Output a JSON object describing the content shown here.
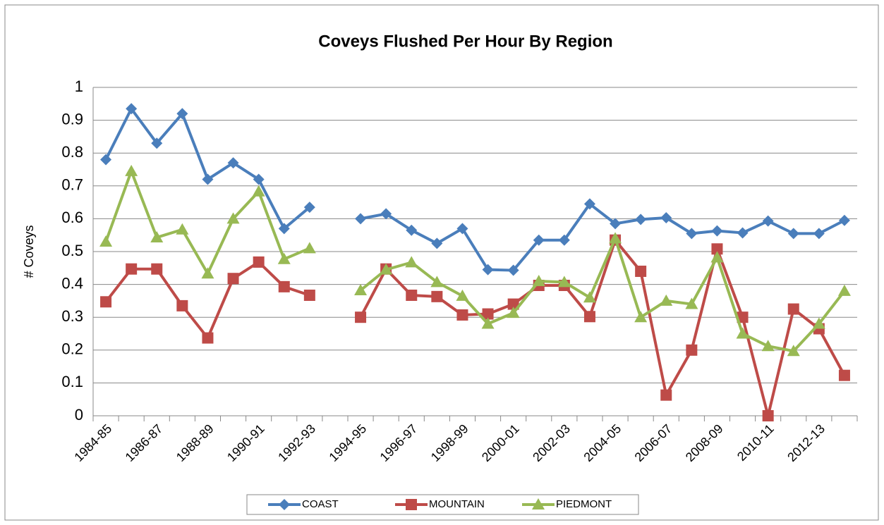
{
  "chart_data": {
    "type": "line",
    "title": "Coveys Flushed Per Hour By Region",
    "y_label": "# Coveys",
    "categories": [
      "1984-85",
      null,
      "1986-87",
      null,
      "1988-89",
      null,
      "1990-91",
      null,
      "1992-93",
      null,
      "1994-95",
      null,
      "1996-97",
      null,
      "1998-99",
      null,
      "2000-01",
      null,
      "2002-03",
      null,
      "2004-05",
      null,
      "2006-07",
      null,
      "2008-09",
      null,
      "2010-11",
      null,
      "2012-13",
      null
    ],
    "series": [
      {
        "name": "COAST",
        "color": "#4a7ebb",
        "marker": "diamond",
        "values": [
          0.78,
          0.935,
          0.83,
          0.92,
          0.72,
          0.77,
          0.72,
          0.57,
          0.635,
          null,
          0.6,
          0.615,
          0.565,
          0.525,
          0.57,
          0.445,
          0.443,
          0.535,
          0.535,
          0.645,
          0.585,
          0.598,
          0.603,
          0.555,
          0.563,
          0.557,
          0.593,
          0.555,
          0.555,
          0.595
        ]
      },
      {
        "name": "MOUNTAIN",
        "color": "#be4b48",
        "marker": "square",
        "values": [
          0.347,
          0.447,
          0.447,
          0.335,
          0.237,
          0.418,
          0.468,
          0.393,
          0.367,
          null,
          0.3,
          0.447,
          0.367,
          0.363,
          0.307,
          0.31,
          0.34,
          0.397,
          0.397,
          0.302,
          0.535,
          0.44,
          0.063,
          0.2,
          0.508,
          0.3,
          0.0,
          0.325,
          0.265,
          0.123
        ]
      },
      {
        "name": "PIEDMONT",
        "color": "#98b954",
        "marker": "triangle",
        "values": [
          0.53,
          0.745,
          0.543,
          0.567,
          0.433,
          0.6,
          0.683,
          0.477,
          0.51,
          null,
          0.382,
          0.445,
          0.467,
          0.407,
          0.365,
          0.28,
          0.313,
          0.41,
          0.407,
          0.36,
          0.54,
          0.3,
          0.35,
          0.34,
          0.482,
          0.25,
          0.212,
          0.197,
          0.28,
          0.38
        ]
      }
    ],
    "ylim": [
      0,
      1
    ],
    "yticks": [
      0,
      0.1,
      0.2,
      0.3,
      0.4,
      0.5,
      0.6,
      0.7,
      0.8,
      0.9,
      1
    ],
    "grid": true,
    "legend": "bottom"
  }
}
